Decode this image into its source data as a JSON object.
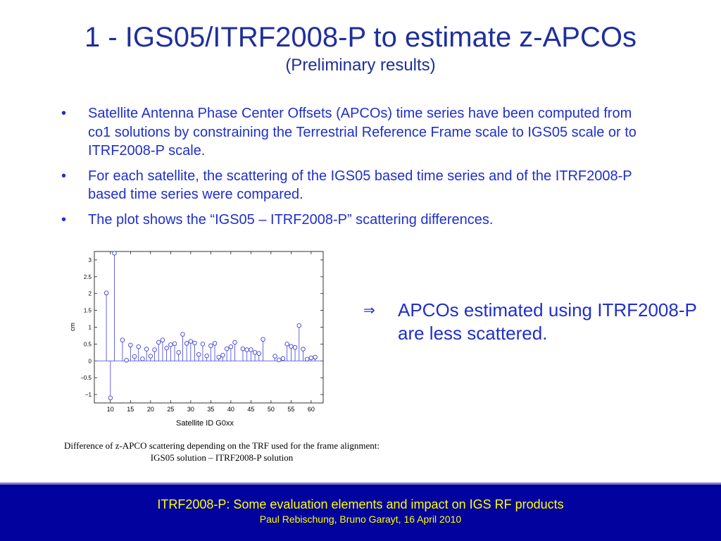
{
  "slide": {
    "title": "1 - IGS05/ITRF2008-P to estimate z-APCOs",
    "subtitle": "(Preliminary results)",
    "bullets": [
      "Satellite Antenna Phase Center Offsets (APCOs) time series have been computed from co1 solutions by constraining the Terrestrial Reference Frame scale to IGS05 scale or to ITRF2008-P scale.",
      "For each satellite, the scattering of the IGS05 based time series and of the ITRF2008-P based time series were compared.",
      "The plot shows the “IGS05 – ITRF2008-P” scattering differences."
    ],
    "bullet_symbol": "•",
    "note_arrow": "⇒",
    "note": "APCOs estimated using ITRF2008-P are less scattered.",
    "caption_line1": "Difference of z-APCO scattering depending on the TRF used for the frame alignment:",
    "caption_line2": "IGS05 solution – ITRF2008-P solution",
    "footer_title": "ITRF2008-P: Some evaluation elements and impact on IGS RF products",
    "footer_subtitle": "Paul Rebischung, Bruno Garayt, 16 April 2010"
  },
  "chart_data": {
    "type": "scatter",
    "style": "stem",
    "xlabel": "Satellite ID G0xx",
    "ylabel": "cm",
    "xlim": [
      6,
      63
    ],
    "ylim": [
      -1.25,
      3.25
    ],
    "xticks": [
      10,
      15,
      20,
      25,
      30,
      35,
      40,
      45,
      50,
      55,
      60
    ],
    "yticks": [
      -1,
      -0.5,
      0,
      0.5,
      1,
      1.5,
      2,
      2.5,
      3
    ],
    "ytick_labels": [
      "−1",
      "−0.5",
      "0",
      "0.5",
      "1",
      "1.5",
      "2",
      "2.5",
      "3"
    ],
    "marker_color": "#3f3fd8",
    "points": [
      [
        9,
        2.02
      ],
      [
        10,
        -1.1
      ],
      [
        11,
        3.2
      ],
      [
        13,
        0.62
      ],
      [
        14,
        0.02
      ],
      [
        15,
        0.47
      ],
      [
        16,
        0.13
      ],
      [
        17,
        0.42
      ],
      [
        18,
        0.06
      ],
      [
        19,
        0.35
      ],
      [
        20,
        0.14
      ],
      [
        21,
        0.33
      ],
      [
        22,
        0.55
      ],
      [
        23,
        0.62
      ],
      [
        24,
        0.38
      ],
      [
        25,
        0.48
      ],
      [
        26,
        0.51
      ],
      [
        27,
        0.25
      ],
      [
        28,
        0.79
      ],
      [
        29,
        0.52
      ],
      [
        30,
        0.58
      ],
      [
        31,
        0.53
      ],
      [
        32,
        0.19
      ],
      [
        33,
        0.5
      ],
      [
        34,
        0.15
      ],
      [
        35,
        0.45
      ],
      [
        36,
        0.52
      ],
      [
        37,
        0.11
      ],
      [
        38,
        0.17
      ],
      [
        39,
        0.36
      ],
      [
        40,
        0.42
      ],
      [
        41,
        0.55
      ],
      [
        43,
        0.36
      ],
      [
        44,
        0.33
      ],
      [
        45,
        0.33
      ],
      [
        46,
        0.25
      ],
      [
        47,
        0.22
      ],
      [
        48,
        0.64
      ],
      [
        51,
        0.14
      ],
      [
        52,
        0.03
      ],
      [
        53,
        0.07
      ],
      [
        54,
        0.5
      ],
      [
        55,
        0.43
      ],
      [
        56,
        0.4
      ],
      [
        57,
        1.05
      ],
      [
        58,
        0.35
      ],
      [
        59,
        0.05
      ],
      [
        60,
        0.09
      ],
      [
        61,
        0.11
      ]
    ]
  }
}
